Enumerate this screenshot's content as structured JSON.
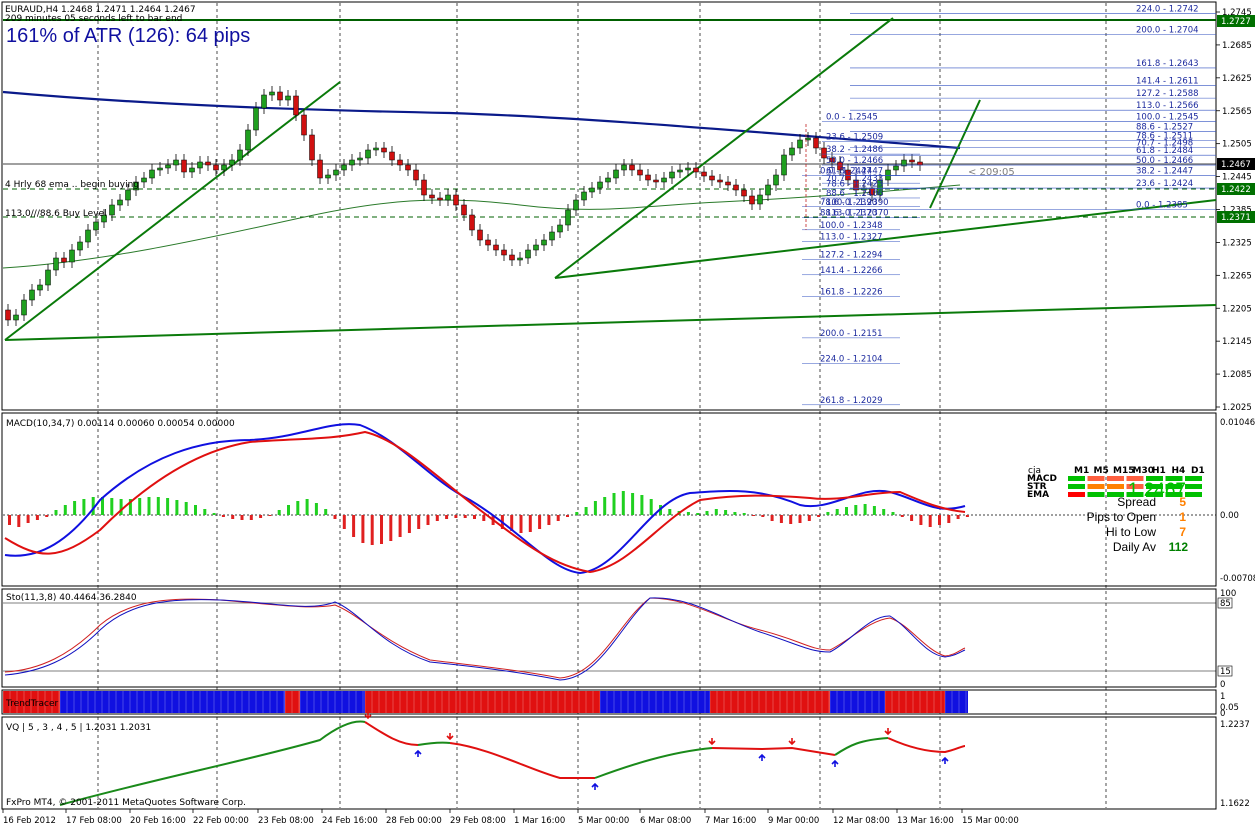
{
  "header": {
    "symbol_line": "EURAUD,H4  1.2468 1.2471 1.2464 1.2467",
    "timer_line": "209 minutes 05 seconds left to bar end",
    "atr_text": "161% of ATR (126): 64 pips",
    "ema_label": "4 Hrly 68 ema .. begin buying",
    "buy_level_label": "113.0///88.6 Buy Level",
    "countdown": "< 209:05"
  },
  "price_axis": {
    "ticks": [
      "1.2745",
      "1.2685",
      "1.2625",
      "1.2565",
      "1.2505",
      "1.2445",
      "1.2385",
      "1.2325",
      "1.2265",
      "1.2205",
      "1.2145",
      "1.2085",
      "1.2025"
    ],
    "current": "1.2467",
    "marker_top": "1.2727",
    "marker_ema": "1.2422",
    "marker_buy": "1.2371"
  },
  "fib_top": [
    "224.0 - 1.2742",
    "200.0 - 1.2704",
    "161.8 - 1.2643",
    "141.4 - 1.2611",
    "127.2 - 1.2588",
    "113.0 - 1.2566",
    "100.0 - 1.2545",
    "88.6 - 1.2527",
    "78.6 - 1.2511",
    "70.7 - 1.2498",
    "61.8 - 1.2484",
    "50.0 - 1.2466",
    "38.2 - 1.2447",
    "23.6 - 1.2424",
    "0.0 - 1.2385"
  ],
  "fib_mid": [
    "0.0 - 1.2545",
    "23.6 - 1.2509",
    "38.2 - 1.2486",
    "50.0 - 1.2466",
    "61.8 - 1.2447",
    "70.7 - 1.2433",
    "78.6 - 1.2423",
    "88.6 - 1.2406",
    "100.0 - 1.2390",
    "113.0 - 1.2370"
  ],
  "fib_low": [
    "0.0 - 1.2447",
    "78.6 - 1.2390",
    "88.6 - 1.2370",
    "100.0 - 1.2348",
    "113.0 - 1.2327",
    "127.2 - 1.2294",
    "141.4 - 1.2266",
    "161.8 - 1.2226",
    "200.0 - 1.2151",
    "224.0 - 1.2104",
    "261.8 - 1.2029"
  ],
  "macd": {
    "label": "MACD(10,34,7) 0.00114 0.00060 0.00054 0.00000",
    "axis_top": "0.01046",
    "axis_zero": "0.00",
    "axis_bottom": "-0.00708"
  },
  "panel": {
    "owner": "cja",
    "timeframes": [
      "M1",
      "M5",
      "M15",
      "M30",
      "H1",
      "H4",
      "D1"
    ],
    "rows": [
      "MACD",
      "STR",
      "EMA"
    ],
    "price": "1.2467",
    "spread_label": "Spread",
    "spread_value": "5",
    "pips_label": "Pips to Open",
    "pips_value": "1",
    "hilo_label": "Hi to Low",
    "hilo_value": "7",
    "daily_label": "Daily Av",
    "daily_value": "112",
    "accent_green": "#00c000",
    "accent_orange": "#ff8000"
  },
  "sto": {
    "label": "Sto(11,3,8) 40.4464 36.2840",
    "axis_top": "100",
    "axis_85": "85",
    "axis_15": "15",
    "axis_bottom": "0"
  },
  "trend": {
    "label": "TrendTracer",
    "axis_top": "1",
    "axis_mid": "0.05",
    "axis_bottom": "0"
  },
  "vq": {
    "label": "VQ | 5 , 3 , 4 , 5 | 1.2031 1.2031",
    "axis_top": "1.2237",
    "axis_bottom": "1.1622",
    "copyright": "FxPro MT4, © 2001-2011 MetaQuotes Software Corp."
  },
  "time_axis": [
    "16 Feb 2012",
    "17 Feb 08:00",
    "20 Feb 16:00",
    "22 Feb 00:00",
    "23 Feb 08:00",
    "24 Feb 16:00",
    "28 Feb 00:00",
    "29 Feb 08:00",
    "1 Mar 16:00",
    "5 Mar 00:00",
    "6 Mar 08:00",
    "7 Mar 16:00",
    "9 Mar 00:00",
    "12 Mar 08:00",
    "13 Mar 16:00",
    "15 Mar 00:00"
  ]
}
